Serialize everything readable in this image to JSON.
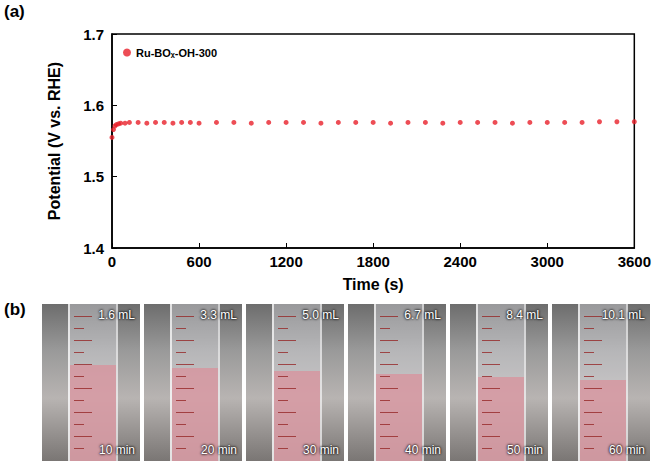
{
  "chart_data": {
    "type": "scatter",
    "x_label": "Time (s)",
    "y_label": "Potential (V vs. RHE)",
    "xlim": [
      0,
      3600
    ],
    "xticks": [
      0,
      600,
      1200,
      1800,
      2400,
      3000,
      3600
    ],
    "ylim": [
      1.4,
      1.7
    ],
    "yticks": [
      1.4,
      1.5,
      1.6,
      1.7
    ],
    "grid": false,
    "legend": "upper left",
    "series": [
      {
        "name": "Ru-BOₓ-OH-300",
        "color": "#e8202a",
        "marker": "circle",
        "x": [
          0,
          10,
          20,
          30,
          45,
          60,
          90,
          120,
          180,
          240,
          300,
          360,
          420,
          480,
          540,
          600,
          720,
          840,
          960,
          1080,
          1200,
          1320,
          1440,
          1560,
          1680,
          1800,
          1920,
          2040,
          2160,
          2280,
          2400,
          2520,
          2640,
          2760,
          2880,
          3000,
          3120,
          3240,
          3360,
          3480,
          3600
        ],
        "values": [
          1.555,
          1.566,
          1.571,
          1.573,
          1.574,
          1.575,
          1.575,
          1.576,
          1.576,
          1.575,
          1.576,
          1.576,
          1.575,
          1.576,
          1.576,
          1.575,
          1.576,
          1.576,
          1.575,
          1.576,
          1.576,
          1.576,
          1.575,
          1.576,
          1.576,
          1.576,
          1.575,
          1.576,
          1.576,
          1.575,
          1.576,
          1.576,
          1.576,
          1.575,
          1.576,
          1.576,
          1.576,
          1.576,
          1.577,
          1.577,
          1.577
        ]
      }
    ]
  },
  "panel_a_label": "(a)",
  "photo_panel": {
    "label": "(b)",
    "photos": [
      {
        "volume": "1.6 mL",
        "time": "10 min"
      },
      {
        "volume": "3.3 mL",
        "time": "20 min"
      },
      {
        "volume": "5.0 mL",
        "time": "30 min"
      },
      {
        "volume": "6.7 mL",
        "time": "40 min"
      },
      {
        "volume": "8.4 mL",
        "time": "50 min"
      },
      {
        "volume": "10.1 mL",
        "time": "60 min"
      }
    ]
  }
}
